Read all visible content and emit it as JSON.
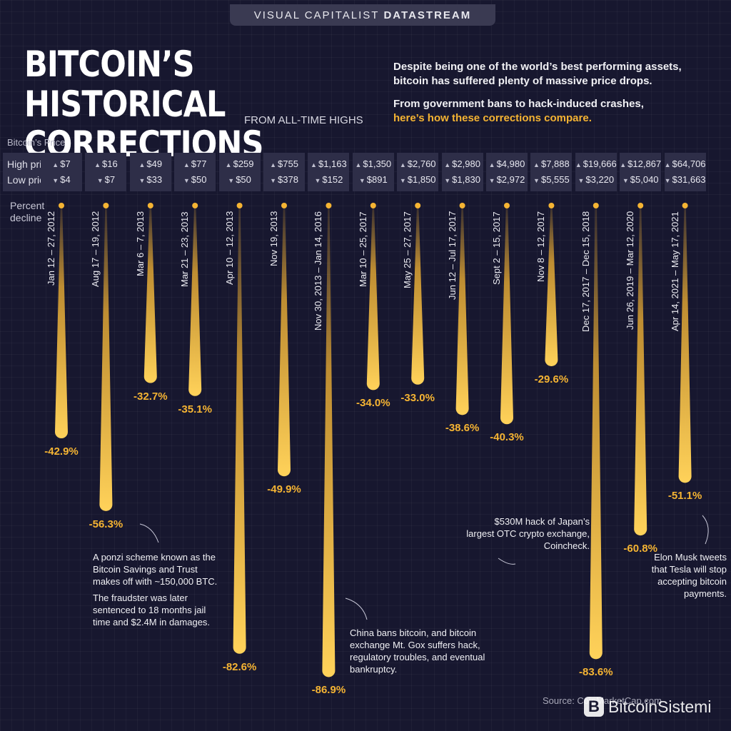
{
  "header": {
    "brand_light": "VISUAL CAPITALIST",
    "brand_bold": "DATASTREAM",
    "title_line1": "BITCOIN’S HISTORICAL",
    "title_line2": "CORRECTIONS",
    "subtitle": "FROM ALL-TIME HIGHS",
    "intro1": "Despite being one of the world’s best performing assets, bitcoin has suffered plenty of massive price drops.",
    "intro2": "From government bans to hack-induced crashes,",
    "intro2_highlight": "here’s how these corrections compare."
  },
  "labels": {
    "price_caption": "Bitcoin’s Price",
    "high_price": "High price",
    "low_price": "Low price",
    "pct_line1": "Percent",
    "pct_line2": "decline"
  },
  "chart_data": {
    "type": "bar",
    "orientation": "downward",
    "categories": [
      "Jan 12 – 27, 2012",
      "Aug 17 – 19, 2012",
      "Mar 6 – 7, 2013",
      "Mar 21 – 23, 2013",
      "Apr 10 – 12, 2013",
      "Nov 19, 2013",
      "Nov 30, 2013 – Jan 14, 2016",
      "Mar 10 – 25, 2017",
      "May 25 – 27, 2017",
      "Jun 12 – Jul 17, 2017",
      "Sept 2 – 15, 2017",
      "Nov 8 – 12, 2017",
      "Dec 17, 2017 – Dec 15, 2018",
      "Jun 26, 2019 – Mar 12, 2020",
      "Apr 14, 2021 – May 17, 2021"
    ],
    "values": [
      -42.9,
      -56.3,
      -32.7,
      -35.1,
      -82.6,
      -49.9,
      -86.9,
      -34.0,
      -33.0,
      -38.6,
      -40.3,
      -29.6,
      -83.6,
      -60.8,
      -51.1
    ],
    "value_labels": [
      "-42.9%",
      "-56.3%",
      "-32.7%",
      "-35.1%",
      "-82.6%",
      "-49.9%",
      "-86.9%",
      "-34.0%",
      "-33.0%",
      "-38.6%",
      "-40.3%",
      "-29.6%",
      "-83.6%",
      "-60.8%",
      "-51.1%"
    ],
    "high_prices": [
      "$7",
      "$16",
      "$49",
      "$77",
      "$259",
      "$755",
      "$1,163",
      "$1,350",
      "$2,760",
      "$2,980",
      "$4,980",
      "$7,888",
      "$19,666",
      "$12,867",
      "$64,706"
    ],
    "low_prices": [
      "$4",
      "$7",
      "$33",
      "$50",
      "$50",
      "$378",
      "$152",
      "$891",
      "$1,850",
      "$1,830",
      "$2,972",
      "$5,555",
      "$3,220",
      "$5,040",
      "$31,663"
    ],
    "bar_color": "#f5b433",
    "ylim": [
      -100,
      0
    ]
  },
  "annotations": {
    "ponzi_p1": "A ponzi scheme known as the Bitcoin Savings and Trust makes off with ~150,000 BTC.",
    "ponzi_p2": "The fraudster was later sentenced to 18 months jail time and $2.4M in damages.",
    "china": "China bans bitcoin, and bitcoin exchange Mt. Gox suffers hack, regulatory troubles, and eventual bankruptcy.",
    "coincheck": "$530M hack of Japan’s largest OTC crypto exchange, Coincheck.",
    "musk": "Elon Musk tweets that Tesla will stop accepting bitcoin payments."
  },
  "footer": {
    "source": "Source: CoinMarketCap.com",
    "watermark": "BitcoinSistemi",
    "watermark_logo": "B"
  },
  "colors": {
    "background": "#17172f",
    "accent": "#f5b433",
    "panel": "#2e2e48"
  }
}
